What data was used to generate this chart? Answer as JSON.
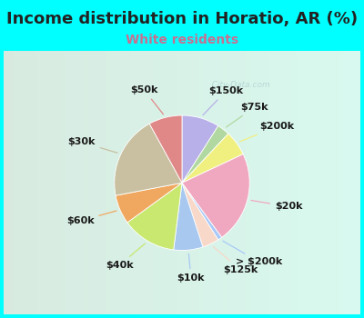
{
  "title": "Income distribution in Horatio, AR (%)",
  "subtitle": "White residents",
  "bg_color": "#00FFFF",
  "chart_bg_top": "#d8f0e8",
  "chart_bg_bot": "#e8f8f0",
  "labels": [
    "$150k",
    "$75k",
    "$200k",
    "$20k",
    "> $200k",
    "$125k",
    "$10k",
    "$40k",
    "$60k",
    "$30k",
    "$50k"
  ],
  "sizes": [
    9,
    3,
    6,
    22,
    1,
    4,
    7,
    13,
    7,
    20,
    8
  ],
  "colors": [
    "#b8b0e8",
    "#b0d8a0",
    "#f0f080",
    "#f0a8c0",
    "#a8c8f8",
    "#f8d8c8",
    "#a8c8f0",
    "#c8e870",
    "#f0a860",
    "#c8c0a0",
    "#e08888"
  ],
  "title_fontsize": 13,
  "subtitle_fontsize": 10,
  "subtitle_color": "#c87090",
  "label_fontsize": 8,
  "startangle": 90,
  "watermark": "  City-Data.com",
  "watermark_icon": "ⓘ"
}
